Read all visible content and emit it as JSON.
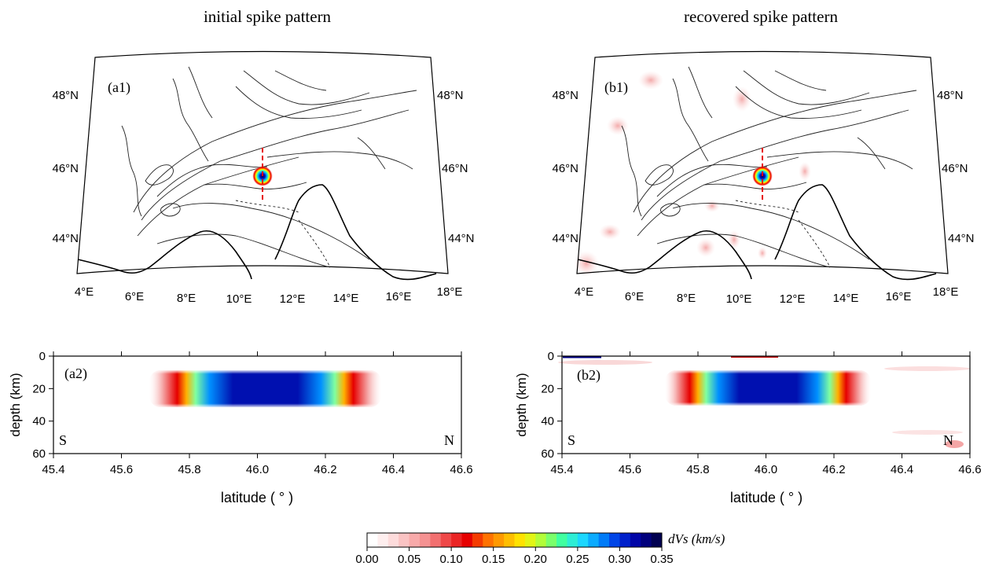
{
  "titles": {
    "left": "initial spike pattern",
    "right": "recovered spike pattern"
  },
  "panels": {
    "a1": "(a1)",
    "b1": "(b1)",
    "a2": "(a2)",
    "b2": "(b2)"
  },
  "map": {
    "lon_ticks": [
      "4°E",
      "6°E",
      "8°E",
      "10°E",
      "12°E",
      "14°E",
      "16°E",
      "18°E"
    ],
    "lat_ticks": [
      "44°N",
      "46°N",
      "48°N"
    ]
  },
  "section": {
    "xlabel": "latitude ( ° )",
    "ylabel": "depth (km)",
    "x_ticks": [
      "45.4",
      "45.6",
      "45.8",
      "46.0",
      "46.2",
      "46.4",
      "46.6"
    ],
    "y_ticks": [
      "0",
      "20",
      "40",
      "60"
    ],
    "south": "S",
    "north": "N"
  },
  "colorbar": {
    "label": "dVs (km/s)",
    "ticks": [
      "0.00",
      "0.05",
      "0.10",
      "0.15",
      "0.20",
      "0.25",
      "0.30",
      "0.35"
    ]
  },
  "chart_data": [
    {
      "type": "heatmap",
      "panel": "a1",
      "title": "initial spike pattern",
      "description_anomaly": {
        "lon": 11.0,
        "lat": 45.8,
        "max_dvs": 0.35
      },
      "xlim": [
        4,
        18
      ],
      "ylim": [
        43,
        49
      ],
      "profile_line": {
        "lon": 11.0,
        "lat_range": [
          45.4,
          46.6
        ]
      }
    },
    {
      "type": "heatmap",
      "panel": "b1",
      "title": "recovered spike pattern",
      "description_anomaly": {
        "lon": 11.0,
        "lat": 45.8,
        "max_dvs": 0.35
      },
      "xlim": [
        4,
        18
      ],
      "ylim": [
        43,
        49
      ],
      "profile_line": {
        "lon": 11.0,
        "lat_range": [
          45.4,
          46.6
        ]
      }
    },
    {
      "type": "heatmap",
      "panel": "a2",
      "xlabel": "latitude ( ° )",
      "ylabel": "depth (km)",
      "xlim": [
        45.4,
        46.6
      ],
      "ylim": [
        60,
        0
      ],
      "anomaly": {
        "lat_range": [
          45.6,
          46.4
        ],
        "depth_range": [
          8,
          32
        ],
        "core_lat": [
          45.8,
          46.2
        ],
        "core_depth": [
          15,
          27
        ],
        "max_dvs": 0.35
      }
    },
    {
      "type": "heatmap",
      "panel": "b2",
      "xlabel": "latitude ( ° )",
      "ylabel": "depth (km)",
      "xlim": [
        45.4,
        46.6
      ],
      "ylim": [
        60,
        0
      ],
      "anomaly": {
        "lat_range": [
          45.65,
          46.35
        ],
        "depth_range": [
          8,
          30
        ],
        "core_lat": [
          45.8,
          46.2
        ],
        "core_depth": [
          17,
          26
        ],
        "max_dvs": 0.35
      }
    },
    {
      "type": "heatmap",
      "panel": "colorbar",
      "label": "dVs (km/s)",
      "range": [
        0.0,
        0.35
      ],
      "colors": [
        "#ffffff",
        "#fde0e0",
        "#f9b4b4",
        "#f48888",
        "#ee4040",
        "#e60000",
        "#ff6a00",
        "#ffb000",
        "#fff000",
        "#a8ff40",
        "#40ffa0",
        "#20e0ff",
        "#0090ff",
        "#0030e0",
        "#0000a0",
        "#000050"
      ]
    }
  ]
}
